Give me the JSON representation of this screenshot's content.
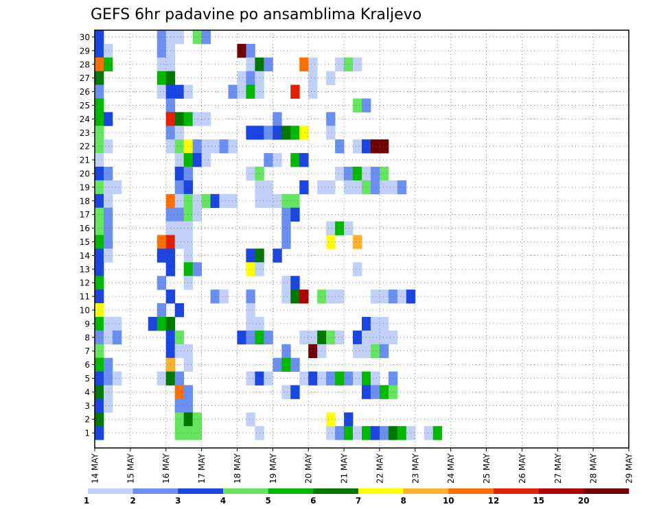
{
  "chart_data": {
    "type": "heatmap",
    "title": "GEFS 6hr padavine po ansamblima Kraljevo",
    "xlabel": "",
    "ylabel": "",
    "x_ticks": [
      "14 MAY",
      "15 MAY",
      "16 MAY",
      "17 MAY",
      "18 MAY",
      "19 MAY",
      "20 MAY",
      "21 MAY",
      "22 MAY",
      "23 MAY",
      "24 MAY",
      "25 MAY",
      "26 MAY",
      "27 MAY",
      "28 MAY",
      "29 MAY"
    ],
    "x_range": [
      "14 MAY 00z",
      "29 MAY 00z"
    ],
    "time_step_hours": 6,
    "members": [
      1,
      30
    ],
    "grid": true,
    "legend": "bottom",
    "levels": [
      1,
      2,
      3,
      4,
      5,
      6,
      7,
      8,
      10,
      12,
      15,
      20
    ],
    "colors": [
      "#c0d0f8",
      "#6a8ff0",
      "#1a45e0",
      "#66e660",
      "#00b800",
      "#007800",
      "#ffff00",
      "#ffb030",
      "#ff7000",
      "#e02000",
      "#b00000",
      "#700000"
    ],
    "points_note": "each point = [time step index from 14 MAY 00z, member, precipitation class index 0-11 of levels]",
    "points": [
      [
        0,
        30,
        2
      ],
      [
        7,
        30,
        1
      ],
      [
        8,
        30,
        0
      ],
      [
        9,
        30,
        0
      ],
      [
        11,
        30,
        3
      ],
      [
        12,
        30,
        1
      ],
      [
        0,
        29,
        2
      ],
      [
        1,
        29,
        0
      ],
      [
        7,
        29,
        1
      ],
      [
        8,
        29,
        0
      ],
      [
        16,
        29,
        11
      ],
      [
        17,
        29,
        1
      ],
      [
        0,
        28,
        8
      ],
      [
        1,
        28,
        4
      ],
      [
        7,
        28,
        0
      ],
      [
        8,
        28,
        0
      ],
      [
        17,
        28,
        0
      ],
      [
        18,
        28,
        5
      ],
      [
        19,
        28,
        1
      ],
      [
        23,
        28,
        8
      ],
      [
        24,
        28,
        0
      ],
      [
        27,
        28,
        0
      ],
      [
        28,
        28,
        3
      ],
      [
        29,
        28,
        0
      ],
      [
        0,
        27,
        5
      ],
      [
        7,
        27,
        4
      ],
      [
        8,
        27,
        5
      ],
      [
        16,
        27,
        0
      ],
      [
        17,
        27,
        1
      ],
      [
        18,
        27,
        0
      ],
      [
        24,
        27,
        0
      ],
      [
        26,
        27,
        0
      ],
      [
        0,
        26,
        1
      ],
      [
        7,
        26,
        0
      ],
      [
        8,
        26,
        2
      ],
      [
        9,
        26,
        2
      ],
      [
        10,
        26,
        0
      ],
      [
        15,
        26,
        1
      ],
      [
        16,
        26,
        0
      ],
      [
        17,
        26,
        4
      ],
      [
        18,
        26,
        0
      ],
      [
        22,
        26,
        9
      ],
      [
        24,
        26,
        0
      ],
      [
        0,
        25,
        4
      ],
      [
        8,
        25,
        1
      ],
      [
        29,
        25,
        3
      ],
      [
        30,
        25,
        1
      ],
      [
        0,
        24,
        4
      ],
      [
        1,
        24,
        2
      ],
      [
        8,
        24,
        9
      ],
      [
        9,
        24,
        5
      ],
      [
        10,
        24,
        4
      ],
      [
        11,
        24,
        0
      ],
      [
        12,
        24,
        0
      ],
      [
        20,
        24,
        1
      ],
      [
        26,
        24,
        1
      ],
      [
        0,
        23,
        3
      ],
      [
        8,
        23,
        1
      ],
      [
        9,
        23,
        0
      ],
      [
        17,
        23,
        2
      ],
      [
        18,
        23,
        2
      ],
      [
        19,
        23,
        1
      ],
      [
        20,
        23,
        2
      ],
      [
        21,
        23,
        5
      ],
      [
        22,
        23,
        4
      ],
      [
        23,
        23,
        6
      ],
      [
        26,
        23,
        0
      ],
      [
        0,
        22,
        3
      ],
      [
        1,
        22,
        0
      ],
      [
        8,
        22,
        0
      ],
      [
        9,
        22,
        3
      ],
      [
        10,
        22,
        6
      ],
      [
        11,
        22,
        1
      ],
      [
        12,
        22,
        0
      ],
      [
        13,
        22,
        0
      ],
      [
        14,
        22,
        1
      ],
      [
        15,
        22,
        0
      ],
      [
        27,
        22,
        1
      ],
      [
        29,
        22,
        0
      ],
      [
        30,
        22,
        2
      ],
      [
        31,
        22,
        11
      ],
      [
        32,
        22,
        11
      ],
      [
        0,
        21,
        0
      ],
      [
        9,
        21,
        0
      ],
      [
        10,
        21,
        4
      ],
      [
        11,
        21,
        2
      ],
      [
        12,
        21,
        0
      ],
      [
        19,
        21,
        1
      ],
      [
        20,
        21,
        0
      ],
      [
        22,
        21,
        4
      ],
      [
        23,
        21,
        2
      ],
      [
        0,
        20,
        2
      ],
      [
        1,
        20,
        1
      ],
      [
        9,
        20,
        2
      ],
      [
        10,
        20,
        1
      ],
      [
        17,
        20,
        0
      ],
      [
        18,
        20,
        3
      ],
      [
        27,
        20,
        0
      ],
      [
        28,
        20,
        1
      ],
      [
        29,
        20,
        4
      ],
      [
        30,
        20,
        0
      ],
      [
        31,
        20,
        1
      ],
      [
        32,
        20,
        3
      ],
      [
        0,
        19,
        3
      ],
      [
        1,
        19,
        0
      ],
      [
        2,
        19,
        0
      ],
      [
        9,
        19,
        1
      ],
      [
        10,
        19,
        2
      ],
      [
        18,
        19,
        0
      ],
      [
        19,
        19,
        0
      ],
      [
        23,
        19,
        2
      ],
      [
        25,
        19,
        0
      ],
      [
        26,
        19,
        0
      ],
      [
        28,
        19,
        0
      ],
      [
        29,
        19,
        0
      ],
      [
        30,
        19,
        3
      ],
      [
        31,
        19,
        1
      ],
      [
        32,
        19,
        0
      ],
      [
        33,
        19,
        0
      ],
      [
        34,
        19,
        1
      ],
      [
        0,
        18,
        2
      ],
      [
        1,
        18,
        0
      ],
      [
        8,
        18,
        8
      ],
      [
        9,
        18,
        0
      ],
      [
        10,
        18,
        3
      ],
      [
        11,
        18,
        0
      ],
      [
        12,
        18,
        3
      ],
      [
        13,
        18,
        2
      ],
      [
        14,
        18,
        0
      ],
      [
        15,
        18,
        0
      ],
      [
        18,
        18,
        0
      ],
      [
        19,
        18,
        0
      ],
      [
        20,
        18,
        0
      ],
      [
        21,
        18,
        3
      ],
      [
        22,
        18,
        3
      ],
      [
        0,
        17,
        3
      ],
      [
        1,
        17,
        1
      ],
      [
        8,
        17,
        1
      ],
      [
        9,
        17,
        1
      ],
      [
        10,
        17,
        3
      ],
      [
        11,
        17,
        0
      ],
      [
        21,
        17,
        1
      ],
      [
        22,
        17,
        2
      ],
      [
        0,
        16,
        3
      ],
      [
        1,
        16,
        1
      ],
      [
        8,
        16,
        0
      ],
      [
        9,
        16,
        0
      ],
      [
        10,
        16,
        0
      ],
      [
        21,
        16,
        1
      ],
      [
        26,
        16,
        0
      ],
      [
        27,
        16,
        4
      ],
      [
        28,
        16,
        0
      ],
      [
        0,
        15,
        4
      ],
      [
        1,
        15,
        1
      ],
      [
        7,
        15,
        8
      ],
      [
        8,
        15,
        9
      ],
      [
        9,
        15,
        0
      ],
      [
        10,
        15,
        0
      ],
      [
        21,
        15,
        1
      ],
      [
        26,
        15,
        6
      ],
      [
        29,
        15,
        7
      ],
      [
        0,
        14,
        2
      ],
      [
        1,
        14,
        0
      ],
      [
        7,
        14,
        2
      ],
      [
        8,
        14,
        2
      ],
      [
        10,
        14,
        0
      ],
      [
        17,
        14,
        2
      ],
      [
        18,
        14,
        5
      ],
      [
        20,
        14,
        2
      ],
      [
        0,
        13,
        2
      ],
      [
        8,
        13,
        2
      ],
      [
        10,
        13,
        4
      ],
      [
        11,
        13,
        1
      ],
      [
        17,
        13,
        6
      ],
      [
        18,
        13,
        0
      ],
      [
        29,
        13,
        0
      ],
      [
        0,
        12,
        4
      ],
      [
        7,
        12,
        1
      ],
      [
        10,
        12,
        0
      ],
      [
        21,
        12,
        0
      ],
      [
        22,
        12,
        2
      ],
      [
        0,
        11,
        2
      ],
      [
        8,
        11,
        2
      ],
      [
        13,
        11,
        1
      ],
      [
        14,
        11,
        0
      ],
      [
        17,
        11,
        1
      ],
      [
        21,
        11,
        0
      ],
      [
        22,
        11,
        5
      ],
      [
        23,
        11,
        10
      ],
      [
        25,
        11,
        3
      ],
      [
        26,
        11,
        0
      ],
      [
        27,
        11,
        0
      ],
      [
        31,
        11,
        0
      ],
      [
        32,
        11,
        0
      ],
      [
        33,
        11,
        1
      ],
      [
        34,
        11,
        0
      ],
      [
        35,
        11,
        2
      ],
      [
        0,
        10,
        6
      ],
      [
        7,
        10,
        1
      ],
      [
        9,
        10,
        2
      ],
      [
        17,
        10,
        0
      ],
      [
        0,
        9,
        4
      ],
      [
        1,
        9,
        0
      ],
      [
        2,
        9,
        0
      ],
      [
        6,
        9,
        2
      ],
      [
        7,
        9,
        4
      ],
      [
        8,
        9,
        5
      ],
      [
        17,
        9,
        0
      ],
      [
        18,
        9,
        0
      ],
      [
        30,
        9,
        2
      ],
      [
        31,
        9,
        0
      ],
      [
        32,
        9,
        0
      ],
      [
        0,
        8,
        1
      ],
      [
        1,
        8,
        0
      ],
      [
        2,
        8,
        1
      ],
      [
        8,
        8,
        2
      ],
      [
        9,
        8,
        3
      ],
      [
        16,
        8,
        2
      ],
      [
        17,
        8,
        1
      ],
      [
        18,
        8,
        4
      ],
      [
        19,
        8,
        1
      ],
      [
        23,
        8,
        0
      ],
      [
        24,
        8,
        0
      ],
      [
        25,
        8,
        5
      ],
      [
        26,
        8,
        3
      ],
      [
        27,
        8,
        0
      ],
      [
        29,
        8,
        2
      ],
      [
        30,
        8,
        0
      ],
      [
        31,
        8,
        0
      ],
      [
        32,
        8,
        0
      ],
      [
        33,
        8,
        0
      ],
      [
        0,
        7,
        3
      ],
      [
        8,
        7,
        2
      ],
      [
        9,
        7,
        0
      ],
      [
        10,
        7,
        0
      ],
      [
        21,
        7,
        1
      ],
      [
        24,
        7,
        11
      ],
      [
        25,
        7,
        0
      ],
      [
        29,
        7,
        0
      ],
      [
        30,
        7,
        0
      ],
      [
        31,
        7,
        3
      ],
      [
        32,
        7,
        1
      ],
      [
        0,
        6,
        4
      ],
      [
        1,
        6,
        1
      ],
      [
        8,
        6,
        7
      ],
      [
        10,
        6,
        0
      ],
      [
        20,
        6,
        1
      ],
      [
        21,
        6,
        4
      ],
      [
        22,
        6,
        1
      ],
      [
        0,
        5,
        2
      ],
      [
        1,
        5,
        1
      ],
      [
        2,
        5,
        0
      ],
      [
        7,
        5,
        0
      ],
      [
        8,
        5,
        5
      ],
      [
        9,
        5,
        1
      ],
      [
        17,
        5,
        0
      ],
      [
        18,
        5,
        2
      ],
      [
        19,
        5,
        0
      ],
      [
        23,
        5,
        0
      ],
      [
        24,
        5,
        2
      ],
      [
        25,
        5,
        0
      ],
      [
        26,
        5,
        1
      ],
      [
        27,
        5,
        4
      ],
      [
        28,
        5,
        1
      ],
      [
        29,
        5,
        0
      ],
      [
        30,
        5,
        4
      ],
      [
        31,
        5,
        0
      ],
      [
        33,
        5,
        1
      ],
      [
        0,
        4,
        5
      ],
      [
        1,
        4,
        0
      ],
      [
        9,
        4,
        8
      ],
      [
        10,
        4,
        1
      ],
      [
        21,
        4,
        0
      ],
      [
        22,
        4,
        2
      ],
      [
        30,
        4,
        2
      ],
      [
        31,
        4,
        1
      ],
      [
        32,
        4,
        4
      ],
      [
        33,
        4,
        3
      ],
      [
        0,
        3,
        2
      ],
      [
        1,
        3,
        0
      ],
      [
        9,
        3,
        1
      ],
      [
        10,
        3,
        1
      ],
      [
        0,
        2,
        5
      ],
      [
        9,
        2,
        3
      ],
      [
        10,
        2,
        5
      ],
      [
        11,
        2,
        3
      ],
      [
        17,
        2,
        0
      ],
      [
        26,
        2,
        6
      ],
      [
        28,
        2,
        2
      ],
      [
        0,
        1,
        2
      ],
      [
        9,
        1,
        3
      ],
      [
        10,
        1,
        3
      ],
      [
        11,
        1,
        3
      ],
      [
        18,
        1,
        0
      ],
      [
        26,
        1,
        0
      ],
      [
        27,
        1,
        1
      ],
      [
        28,
        1,
        4
      ],
      [
        29,
        1,
        0
      ],
      [
        30,
        1,
        4
      ],
      [
        31,
        1,
        2
      ],
      [
        32,
        1,
        1
      ],
      [
        33,
        1,
        5
      ],
      [
        34,
        1,
        4
      ],
      [
        35,
        1,
        0
      ],
      [
        37,
        1,
        0
      ],
      [
        38,
        1,
        4
      ]
    ]
  }
}
